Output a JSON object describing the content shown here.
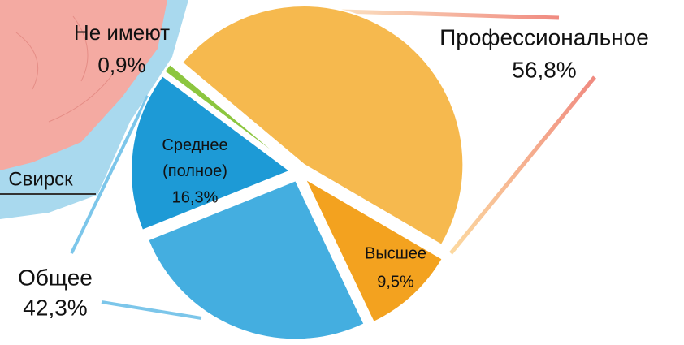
{
  "chart_data": {
    "type": "pie",
    "map_label": "Свирск",
    "groups": [
      {
        "name": "Профессиональное",
        "value": 56.8,
        "value_label": "56,8%",
        "color": "#f6b94e",
        "parts": [
          {
            "name": "Высшее",
            "value": 9.5,
            "value_label": "9,5%",
            "color": "#f3a21f"
          }
        ]
      },
      {
        "name": "Общее",
        "value": 42.3,
        "value_label": "42,3%",
        "color": "#44aee0",
        "parts": [
          {
            "name": "Среднее (полное)",
            "value": 16.3,
            "value_label": "16,3%",
            "color": "#1d9ad6"
          }
        ]
      },
      {
        "name": "Не имеют",
        "value": 0.9,
        "value_label": "0,9%",
        "color": "#8cc63f",
        "parts": []
      }
    ]
  }
}
